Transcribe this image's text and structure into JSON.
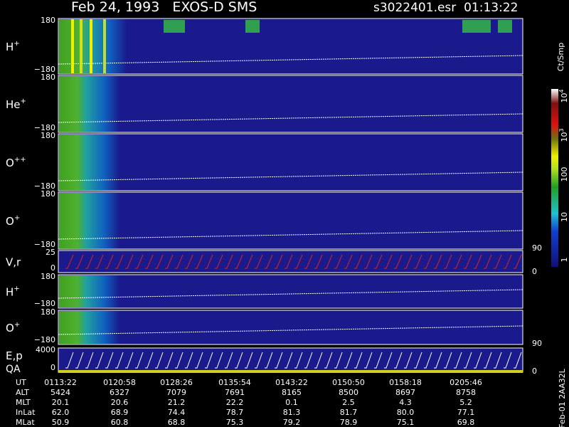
{
  "header": {
    "title": "Feb 24, 1993   EXOS-D SMS",
    "file": "s3022401.esr  01:13:22"
  },
  "panels": [
    {
      "label": "H",
      "sup": "+",
      "top": "180",
      "bottom": "−180"
    },
    {
      "label": "He",
      "sup": "+",
      "top": "180",
      "bottom": "−180"
    },
    {
      "label": "O",
      "sup": "++",
      "top": "180",
      "bottom": "−180"
    },
    {
      "label": "O",
      "sup": "+",
      "top": "180",
      "bottom": "−180",
      "right": "90"
    },
    {
      "label": "V,r",
      "top": "25",
      "bottom": "0",
      "right": "0"
    },
    {
      "label": "H",
      "sup": "+",
      "top": "180",
      "bottom": "−180"
    },
    {
      "label": "O",
      "sup": "+",
      "top": "180",
      "bottom": "−180",
      "right": "90"
    },
    {
      "label": "E,p",
      "label2": "QA",
      "top": "4000",
      "bottom": "0",
      "right": "0"
    }
  ],
  "colorbar": {
    "title": "Ct/Smp",
    "labels": [
      {
        "base": "10",
        "sup": "4"
      },
      {
        "base": "10",
        "sup": "3"
      },
      {
        "base": "100"
      },
      {
        "base": "10"
      },
      {
        "base": "1"
      }
    ]
  },
  "footer_id": "Feb-01 2AA32L",
  "time_table": {
    "rows": [
      {
        "name": "UT",
        "values": [
          "0113:22",
          "0120:58",
          "0128:26",
          "0135:54",
          "0143:22",
          "0150:50",
          "0158:18",
          "0205:46"
        ]
      },
      {
        "name": "ALT",
        "values": [
          "5424",
          "6327",
          "7079",
          "7691",
          "8165",
          "8500",
          "8697",
          "8758"
        ]
      },
      {
        "name": "MLT",
        "values": [
          "20.1",
          "20.6",
          "21.2",
          "22.2",
          "0.1",
          "2.5",
          "4.3",
          "5.2"
        ]
      },
      {
        "name": "InLat",
        "values": [
          "62.0",
          "68.9",
          "74.4",
          "78.7",
          "81.3",
          "81.7",
          "80.0",
          "77.1"
        ]
      },
      {
        "name": "MLat",
        "values": [
          "50.9",
          "60.8",
          "68.8",
          "75.3",
          "79.2",
          "78.9",
          "75.1",
          "69.8"
        ]
      }
    ]
  }
}
